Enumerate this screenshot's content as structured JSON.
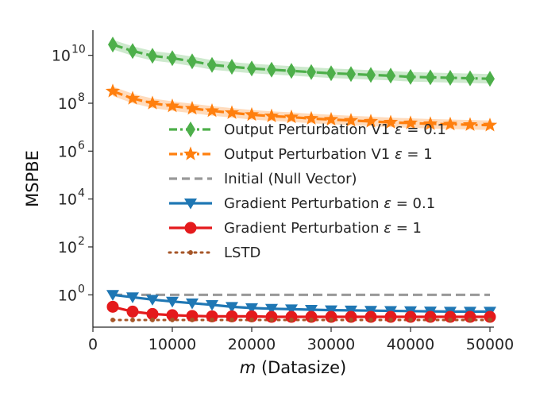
{
  "chart_data": {
    "type": "line",
    "xlabel_var": "m",
    "xlabel_rest": " (Datasize)",
    "ylabel": "MSPBE",
    "xlim": [
      0,
      50500
    ],
    "ylim_log10": [
      -1.35,
      11.05
    ],
    "y_scale": "log",
    "x_ticks": [
      0,
      10000,
      20000,
      30000,
      40000,
      50000
    ],
    "x_tick_labels": [
      "0",
      "10000",
      "20000",
      "30000",
      "40000",
      "50000"
    ],
    "y_ticks_exp": [
      0,
      2,
      4,
      6,
      8,
      10
    ],
    "y_tick_base": "10",
    "y_tick_exps": [
      "0",
      "2",
      "4",
      "6",
      "8",
      "10"
    ],
    "grid": false,
    "legend_position": "center-right",
    "x": [
      2500,
      5000,
      7500,
      10000,
      12500,
      15000,
      17500,
      20000,
      22500,
      25000,
      27500,
      30000,
      32500,
      35000,
      37500,
      40000,
      42500,
      45000,
      47500,
      50000
    ],
    "series": [
      {
        "name_main": "Output Perturbation V1 ",
        "name_eps": "0.1",
        "color": "#4daf4a",
        "marker": "diamond",
        "linestyle": "dashdot",
        "band": true,
        "log10_values": [
          10.45,
          10.18,
          9.98,
          9.88,
          9.75,
          9.6,
          9.52,
          9.45,
          9.4,
          9.35,
          9.3,
          9.25,
          9.22,
          9.18,
          9.15,
          9.1,
          9.08,
          9.06,
          9.04,
          9.02
        ]
      },
      {
        "name_main": "Output Perturbation V1 ",
        "name_eps": "1",
        "color": "#ff7f0e",
        "marker": "star",
        "linestyle": "dashdot",
        "band": true,
        "log10_values": [
          8.5,
          8.2,
          8.0,
          7.88,
          7.78,
          7.68,
          7.6,
          7.52,
          7.46,
          7.42,
          7.36,
          7.32,
          7.28,
          7.24,
          7.2,
          7.17,
          7.14,
          7.12,
          7.1,
          7.08
        ]
      },
      {
        "name_main": "Initial (Null Vector)",
        "color": "#999999",
        "marker": "none",
        "linestyle": "dashed",
        "log10_values": [
          0,
          0,
          0,
          0,
          0,
          0,
          0,
          0,
          0,
          0,
          0,
          0,
          0,
          0,
          0,
          0,
          0,
          0,
          0,
          0
        ]
      },
      {
        "name_main": "Gradient Perturbation ",
        "name_eps": "0.1",
        "color": "#1f77b4",
        "marker": "triangle-down",
        "linestyle": "solid",
        "log10_values": [
          0,
          -0.1,
          -0.2,
          -0.28,
          -0.35,
          -0.42,
          -0.5,
          -0.55,
          -0.58,
          -0.6,
          -0.62,
          -0.64,
          -0.65,
          -0.66,
          -0.67,
          -0.68,
          -0.69,
          -0.7,
          -0.7,
          -0.7
        ]
      },
      {
        "name_main": "Gradient Perturbation ",
        "name_eps": "1",
        "color": "#e41a1c",
        "marker": "circle",
        "linestyle": "solid",
        "log10_values": [
          -0.5,
          -0.7,
          -0.8,
          -0.85,
          -0.88,
          -0.9,
          -0.9,
          -0.9,
          -0.92,
          -0.92,
          -0.92,
          -0.92,
          -0.92,
          -0.92,
          -0.92,
          -0.92,
          -0.92,
          -0.92,
          -0.92,
          -0.92
        ]
      },
      {
        "name_main": "LSTD",
        "color": "#a65628",
        "marker": "dot",
        "linestyle": "dotted",
        "log10_values": [
          -1.05,
          -1.05,
          -1.05,
          -1.05,
          -1.05,
          -1.05,
          -1.05,
          -1.05,
          -1.05,
          -1.05,
          -1.05,
          -1.05,
          -1.05,
          -1.05,
          -1.05,
          -1.05,
          -1.05,
          -1.05,
          -1.05,
          -1.05
        ]
      }
    ]
  }
}
